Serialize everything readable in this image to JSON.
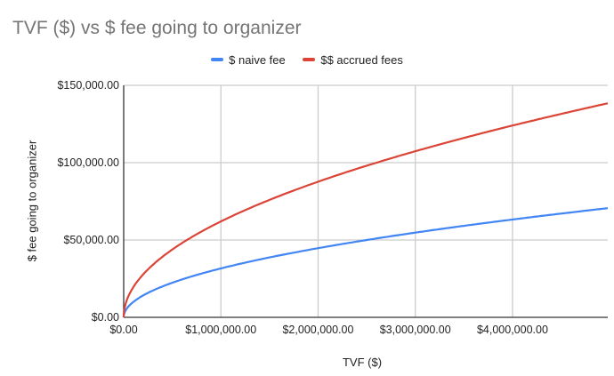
{
  "chart_data": {
    "type": "line",
    "title": "TVF ($) vs $ fee going to organizer",
    "xlabel": "TVF ($)",
    "ylabel": "$ fee going to organizer",
    "xlim": [
      0,
      4980000
    ],
    "ylim": [
      0,
      150000
    ],
    "grid": true,
    "legend": "top",
    "x_ticks": [
      0,
      1000000,
      2000000,
      3000000,
      4000000
    ],
    "x_tick_labels": [
      "$0.00",
      "$1,000,000.00",
      "$2,000,000.00",
      "$3,000,000.00",
      "$4,000,000.00"
    ],
    "y_ticks": [
      0,
      50000,
      100000,
      150000
    ],
    "y_tick_labels": [
      "$0.00",
      "$50,000.00",
      "$100,000.00",
      "$150,000.00"
    ],
    "x": [
      0,
      50000,
      100000,
      250000,
      500000,
      750000,
      1000000,
      1500000,
      2000000,
      2500000,
      3000000,
      3500000,
      4000000,
      4500000,
      4980000
    ],
    "series": [
      {
        "name": "$ naive fee",
        "color": "#4285f4",
        "values": [
          0,
          7071,
          10000,
          15811,
          22361,
          27386,
          31623,
          38730,
          44721,
          50000,
          54772,
          59161,
          63246,
          67082,
          70569
        ]
      },
      {
        "name": "$$ accrued fees",
        "color": "#db4437",
        "values": [
          0,
          13864,
          19606,
          31000,
          43841,
          53694,
          62000,
          75934,
          87681,
          98031,
          107387,
          115991,
          124000,
          131520,
          138360
        ]
      }
    ]
  }
}
